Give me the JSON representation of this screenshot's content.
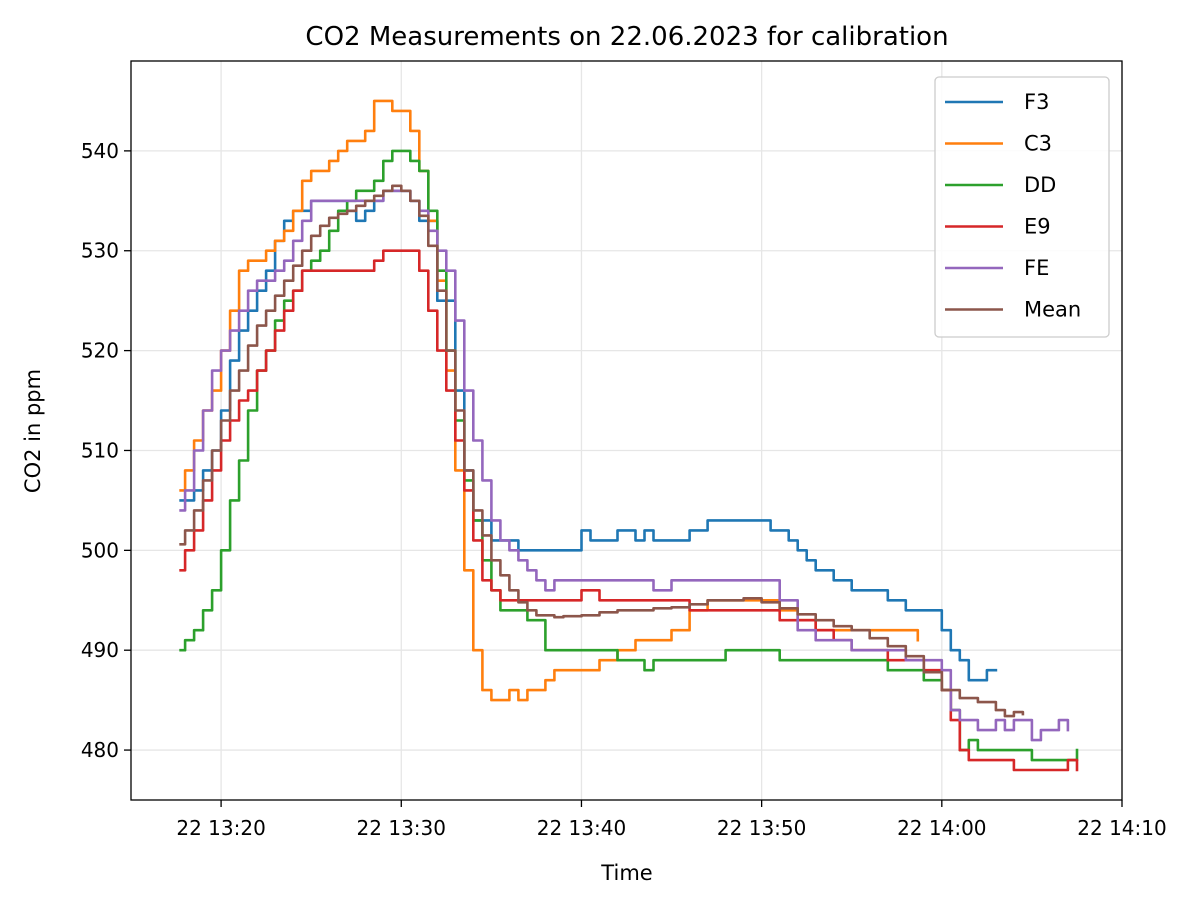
{
  "chart_data": {
    "type": "line",
    "title": "CO2 Measurements on 22.06.2023 for calibration",
    "xlabel": "Time",
    "ylabel": "CO2 in ppm",
    "xlim": [
      "13:15",
      "14:10"
    ],
    "ylim": [
      475,
      549
    ],
    "x_ticks": [
      "13:20",
      "13:30",
      "13:40",
      "13:50",
      "14:00",
      "14:10"
    ],
    "x_tick_labels": [
      "22 13:20",
      "22 13:30",
      "22 13:40",
      "22 13:50",
      "22 14:00",
      "22 14:10"
    ],
    "y_ticks": [
      480,
      490,
      500,
      510,
      520,
      530,
      540
    ],
    "y_tick_labels": [
      "480",
      "490",
      "500",
      "510",
      "520",
      "530",
      "540"
    ],
    "grid": true,
    "legend_position": "top-right",
    "series": [
      {
        "name": "F3",
        "color": "#1f77b4",
        "x": [
          "13:17:45",
          "13:18:30",
          "13:19:00",
          "13:19:30",
          "13:20:00",
          "13:20:30",
          "13:21:00",
          "13:21:30",
          "13:22:00",
          "13:22:30",
          "13:23:00",
          "13:23:30",
          "13:24:00",
          "13:24:30",
          "13:25:00",
          "13:26:00",
          "13:27:00",
          "13:27:30",
          "13:28:00",
          "13:28:30",
          "13:29:00",
          "13:29:30",
          "13:30:00",
          "13:30:30",
          "13:31:00",
          "13:32:00",
          "13:33:00",
          "13:33:30",
          "13:34:00",
          "13:35:00",
          "13:36:00",
          "13:36:30",
          "13:37:00",
          "13:38:00",
          "13:39:00",
          "13:40:00",
          "13:40:30",
          "13:41:00",
          "13:42:00",
          "13:43:00",
          "13:43:30",
          "13:44:00",
          "13:45:00",
          "13:46:00",
          "13:46:30",
          "13:47:00",
          "13:48:00",
          "13:49:00",
          "13:50:00",
          "13:50:30",
          "13:51:00",
          "13:51:30",
          "13:52:00",
          "13:52:30",
          "13:53:00",
          "13:54:00",
          "13:55:00",
          "13:56:00",
          "13:57:00",
          "13:58:00",
          "13:59:00",
          "14:00:00",
          "14:00:30",
          "14:01:00",
          "14:01:30",
          "14:02:00",
          "14:02:30",
          "14:03:00"
        ],
        "y": [
          505,
          506,
          508,
          510,
          514,
          519,
          522,
          524,
          526,
          528,
          531,
          533,
          534,
          534,
          535,
          535,
          534,
          533,
          534,
          535,
          536,
          536,
          536,
          535,
          533,
          525,
          516,
          508,
          503,
          501,
          501,
          500,
          500,
          500,
          500,
          502,
          501,
          501,
          502,
          501,
          502,
          501,
          501,
          502,
          502,
          503,
          503,
          503,
          503,
          502,
          502,
          501,
          500,
          499,
          498,
          497,
          496,
          496,
          495,
          494,
          494,
          492,
          490,
          489,
          487,
          487,
          488,
          488
        ]
      },
      {
        "name": "C3",
        "color": "#ff7f0e",
        "x": [
          "13:17:45",
          "13:18:00",
          "13:18:30",
          "13:19:00",
          "13:19:30",
          "13:20:00",
          "13:20:30",
          "13:21:00",
          "13:21:30",
          "13:22:00",
          "13:22:30",
          "13:23:00",
          "13:23:30",
          "13:24:00",
          "13:24:30",
          "13:25:00",
          "13:25:30",
          "13:26:00",
          "13:26:30",
          "13:27:00",
          "13:27:30",
          "13:28:00",
          "13:28:30",
          "13:29:00",
          "13:29:30",
          "13:30:00",
          "13:30:30",
          "13:31:00",
          "13:31:30",
          "13:32:00",
          "13:32:30",
          "13:33:00",
          "13:33:30",
          "13:34:00",
          "13:34:30",
          "13:35:00",
          "13:35:30",
          "13:36:00",
          "13:36:30",
          "13:37:00",
          "13:37:30",
          "13:38:00",
          "13:38:30",
          "13:39:00",
          "13:40:00",
          "13:41:00",
          "13:42:00",
          "13:43:00",
          "13:44:00",
          "13:45:00",
          "13:46:00",
          "13:47:00",
          "13:48:00",
          "13:49:00",
          "13:50:00",
          "13:51:00",
          "13:52:00",
          "13:53:00",
          "13:54:00",
          "13:55:00",
          "13:56:00",
          "13:57:00",
          "13:58:00",
          "13:58:40"
        ],
        "y": [
          506,
          508,
          511,
          514,
          516,
          520,
          524,
          528,
          529,
          529,
          530,
          531,
          532,
          534,
          537,
          538,
          538,
          539,
          540,
          541,
          541,
          542,
          545,
          545,
          544,
          544,
          542,
          538,
          533,
          527,
          518,
          508,
          498,
          490,
          486,
          485,
          485,
          486,
          485,
          486,
          486,
          487,
          488,
          488,
          488,
          489,
          490,
          491,
          491,
          492,
          494,
          495,
          495,
          495,
          495,
          494,
          493,
          492,
          492,
          492,
          492,
          492,
          492,
          491
        ]
      },
      {
        "name": "DD",
        "color": "#2ca02c",
        "x": [
          "13:17:45",
          "13:18:00",
          "13:18:30",
          "13:19:00",
          "13:19:30",
          "13:20:00",
          "13:20:30",
          "13:21:00",
          "13:21:30",
          "13:22:00",
          "13:22:30",
          "13:23:00",
          "13:23:30",
          "13:24:00",
          "13:24:30",
          "13:25:00",
          "13:25:30",
          "13:26:00",
          "13:26:30",
          "13:27:00",
          "13:27:30",
          "13:28:00",
          "13:28:30",
          "13:29:00",
          "13:29:30",
          "13:30:00",
          "13:30:30",
          "13:31:00",
          "13:31:30",
          "13:32:00",
          "13:32:30",
          "13:33:00",
          "13:33:30",
          "13:34:00",
          "13:34:30",
          "13:35:00",
          "13:35:30",
          "13:36:00",
          "13:36:30",
          "13:37:00",
          "13:38:00",
          "13:39:00",
          "13:40:00",
          "13:41:00",
          "13:42:00",
          "13:43:00",
          "13:43:30",
          "13:44:00",
          "13:45:00",
          "13:46:00",
          "13:47:00",
          "13:48:00",
          "13:49:00",
          "13:50:00",
          "13:51:00",
          "13:52:00",
          "13:53:00",
          "13:54:00",
          "13:55:00",
          "13:56:00",
          "13:57:00",
          "13:58:00",
          "13:59:00",
          "14:00:00",
          "14:00:30",
          "14:01:00",
          "14:01:30",
          "14:02:00",
          "14:03:00",
          "14:04:00",
          "14:05:00",
          "14:06:00",
          "14:07:00",
          "14:07:30"
        ],
        "y": [
          490,
          491,
          492,
          494,
          496,
          500,
          505,
          509,
          514,
          518,
          520,
          523,
          525,
          526,
          528,
          529,
          530,
          532,
          534,
          535,
          536,
          536,
          537,
          539,
          540,
          540,
          539,
          538,
          534,
          528,
          520,
          513,
          507,
          503,
          499,
          496,
          494,
          494,
          494,
          493,
          490,
          490,
          490,
          490,
          489,
          489,
          488,
          489,
          489,
          489,
          489,
          490,
          490,
          490,
          489,
          489,
          489,
          489,
          489,
          489,
          488,
          488,
          487,
          486,
          484,
          480,
          481,
          480,
          480,
          480,
          479,
          479,
          479,
          480
        ]
      },
      {
        "name": "E9",
        "color": "#d62728",
        "x": [
          "13:17:45",
          "13:18:00",
          "13:18:30",
          "13:19:00",
          "13:19:30",
          "13:20:00",
          "13:20:30",
          "13:21:00",
          "13:21:30",
          "13:22:00",
          "13:22:30",
          "13:23:00",
          "13:23:30",
          "13:24:00",
          "13:24:30",
          "13:25:00",
          "13:26:00",
          "13:27:00",
          "13:28:00",
          "13:28:30",
          "13:29:00",
          "13:30:00",
          "13:30:30",
          "13:31:00",
          "13:31:30",
          "13:32:00",
          "13:32:30",
          "13:33:00",
          "13:33:30",
          "13:34:00",
          "13:34:30",
          "13:35:00",
          "13:35:30",
          "13:36:00",
          "13:36:30",
          "13:37:00",
          "13:38:00",
          "13:39:00",
          "13:40:00",
          "13:41:00",
          "13:42:00",
          "13:43:00",
          "13:44:00",
          "13:45:00",
          "13:46:00",
          "13:47:00",
          "13:48:00",
          "13:49:00",
          "13:50:00",
          "13:51:00",
          "13:52:00",
          "13:53:00",
          "13:54:00",
          "13:55:00",
          "13:56:00",
          "13:57:00",
          "13:58:00",
          "13:59:00",
          "14:00:00",
          "14:00:30",
          "14:01:00",
          "14:01:30",
          "14:02:00",
          "14:02:30",
          "14:03:00",
          "14:04:00",
          "14:05:00",
          "14:06:00",
          "14:06:30",
          "14:07:00",
          "14:07:30"
        ],
        "y": [
          498,
          500,
          502,
          505,
          508,
          511,
          513,
          515,
          516,
          518,
          520,
          522,
          524,
          526,
          528,
          528,
          528,
          528,
          528,
          529,
          530,
          530,
          530,
          528,
          524,
          520,
          516,
          511,
          506,
          501,
          497,
          496,
          495,
          495,
          495,
          495,
          495,
          495,
          496,
          495,
          495,
          495,
          495,
          495,
          494,
          494,
          494,
          494,
          494,
          493,
          493,
          492,
          491,
          490,
          490,
          489,
          489,
          488,
          486,
          483,
          480,
          479,
          479,
          479,
          479,
          478,
          478,
          478,
          478,
          479,
          478
        ]
      },
      {
        "name": "FE",
        "color": "#9467bd",
        "x": [
          "13:17:45",
          "13:18:00",
          "13:18:30",
          "13:19:00",
          "13:19:30",
          "13:20:00",
          "13:20:30",
          "13:21:00",
          "13:21:30",
          "13:22:00",
          "13:22:30",
          "13:23:00",
          "13:23:30",
          "13:24:00",
          "13:24:30",
          "13:25:00",
          "13:25:30",
          "13:26:00",
          "13:27:00",
          "13:28:00",
          "13:29:00",
          "13:29:30",
          "13:30:00",
          "13:30:30",
          "13:31:00",
          "13:31:30",
          "13:32:00",
          "13:32:30",
          "13:33:00",
          "13:33:30",
          "13:34:00",
          "13:34:30",
          "13:35:00",
          "13:35:30",
          "13:36:00",
          "13:36:30",
          "13:37:00",
          "13:37:30",
          "13:38:00",
          "13:38:30",
          "13:39:00",
          "13:39:30",
          "13:40:00",
          "13:41:00",
          "13:42:00",
          "13:43:00",
          "13:44:00",
          "13:45:00",
          "13:46:00",
          "13:47:00",
          "13:48:00",
          "13:49:00",
          "13:50:00",
          "13:51:00",
          "13:52:00",
          "13:53:00",
          "13:54:00",
          "13:55:00",
          "13:56:00",
          "13:57:00",
          "13:58:00",
          "13:59:00",
          "14:00:00",
          "14:00:30",
          "14:01:00",
          "14:01:30",
          "14:02:00",
          "14:02:30",
          "14:03:00",
          "14:03:30",
          "14:04:00",
          "14:05:00",
          "14:05:30",
          "14:06:00",
          "14:06:30",
          "14:07:00"
        ],
        "y": [
          504,
          506,
          510,
          514,
          518,
          520,
          522,
          524,
          526,
          527,
          527,
          528,
          529,
          531,
          533,
          535,
          535,
          535,
          535,
          535,
          536,
          536,
          536,
          535,
          534,
          532,
          530,
          528,
          523,
          516,
          511,
          507,
          503,
          501,
          500,
          499,
          498,
          497,
          496,
          497,
          497,
          497,
          497,
          497,
          497,
          497,
          496,
          497,
          497,
          497,
          497,
          497,
          497,
          495,
          492,
          491,
          491,
          490,
          490,
          490,
          489,
          489,
          488,
          484,
          483,
          483,
          482,
          482,
          483,
          482,
          483,
          481,
          482,
          482,
          483,
          482
        ]
      },
      {
        "name": "Mean",
        "color": "#8c564b",
        "x": [
          "13:17:45",
          "13:18:00",
          "13:18:30",
          "13:19:00",
          "13:19:30",
          "13:20:00",
          "13:20:30",
          "13:21:00",
          "13:21:30",
          "13:22:00",
          "13:22:30",
          "13:23:00",
          "13:23:30",
          "13:24:00",
          "13:24:30",
          "13:25:00",
          "13:25:30",
          "13:26:00",
          "13:26:30",
          "13:27:00",
          "13:27:30",
          "13:28:00",
          "13:28:30",
          "13:29:00",
          "13:29:30",
          "13:30:00",
          "13:30:30",
          "13:31:00",
          "13:31:30",
          "13:32:00",
          "13:32:30",
          "13:33:00",
          "13:33:30",
          "13:34:00",
          "13:34:30",
          "13:35:00",
          "13:35:30",
          "13:36:00",
          "13:36:30",
          "13:37:00",
          "13:37:30",
          "13:38:00",
          "13:38:30",
          "13:39:00",
          "13:40:00",
          "13:41:00",
          "13:42:00",
          "13:43:00",
          "13:44:00",
          "13:45:00",
          "13:46:00",
          "13:47:00",
          "13:48:00",
          "13:49:00",
          "13:50:00",
          "13:51:00",
          "13:52:00",
          "13:53:00",
          "13:54:00",
          "13:55:00",
          "13:56:00",
          "13:57:00",
          "13:58:00",
          "13:59:00",
          "14:00:00",
          "14:01:00",
          "14:02:00",
          "14:03:00",
          "14:03:30",
          "14:04:00",
          "14:04:30"
        ],
        "y": [
          500.6,
          502,
          504,
          507,
          510,
          513,
          516,
          518,
          520.5,
          522.5,
          524,
          525.5,
          527,
          528.5,
          530,
          531.5,
          532.5,
          533.3,
          533.7,
          534,
          534.5,
          535,
          535.5,
          536,
          536.5,
          536,
          535,
          533.5,
          530.5,
          526,
          520,
          514,
          508,
          504,
          501.5,
          499,
          497.5,
          496,
          494.8,
          494,
          493.5,
          493.5,
          493.3,
          493.4,
          493.5,
          493.8,
          494,
          494,
          494.2,
          494.3,
          494.6,
          495,
          495,
          495.2,
          494.8,
          494.2,
          493.6,
          493,
          492.4,
          492,
          491.2,
          490.4,
          489.4,
          487.8,
          486,
          485.2,
          484.8,
          484,
          483.4,
          483.8,
          483.6
        ]
      }
    ]
  }
}
